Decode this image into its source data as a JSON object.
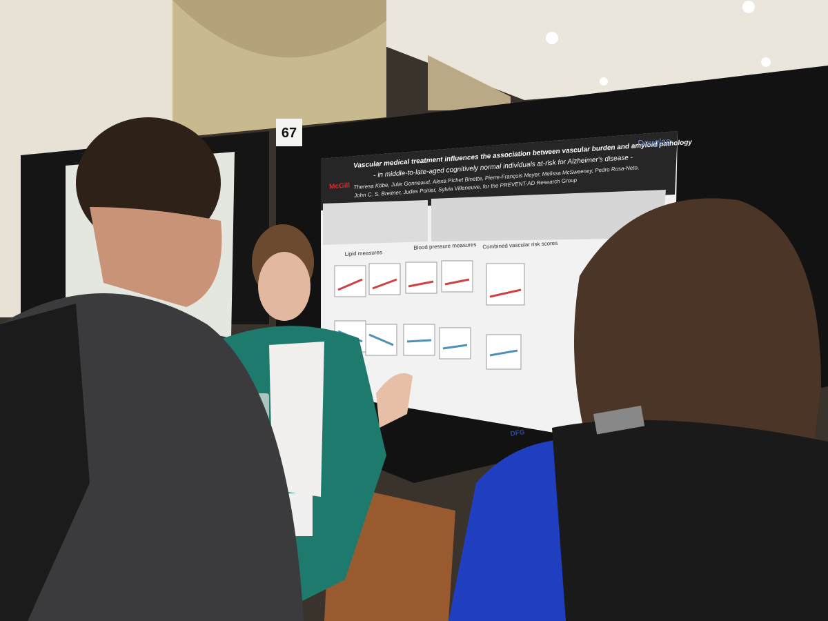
{
  "board_number": "67",
  "poster": {
    "title": "Vascular medical treatment influences the association between vascular burden and amyloid pathology",
    "subtitle": "- in middle-to-late-aged cognitively normal individuals at-risk for Alzheimer's disease -",
    "authors": [
      "Theresa Köbe, Julie Gonneaud, Alexa Pichet Binette, Pierre-François Meyer, Melissa McSweeney, Pedro Rosa-Neto,",
      "John C. S. Breitner, Judes Poirier, Sylvia Villeneuve, for the PREVENT-AD Research Group"
    ],
    "logos": [
      "McGill",
      "Douglas",
      "DFG"
    ],
    "panels": [
      "Lipid measures",
      "Blood pressure measures",
      "Combined vascular risk scores"
    ]
  }
}
